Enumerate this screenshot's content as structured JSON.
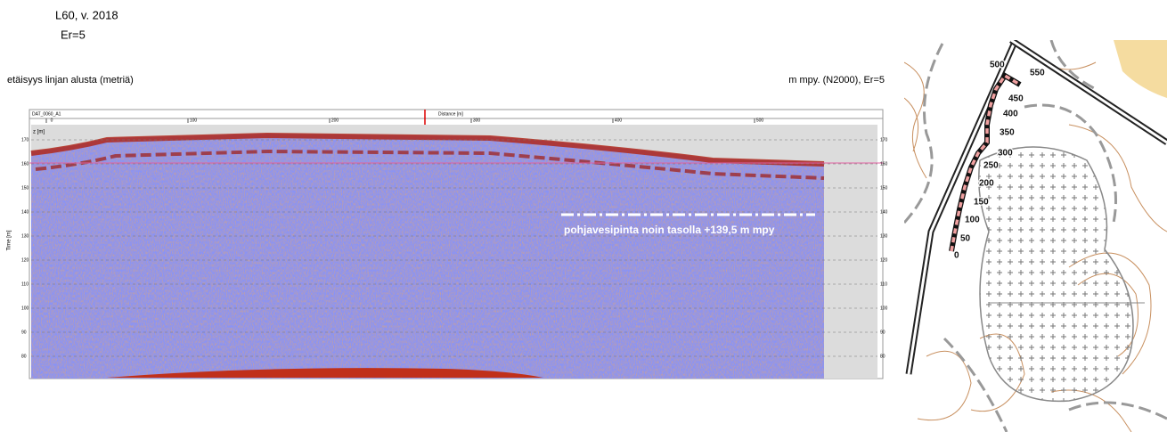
{
  "header": {
    "title": "L60, v. 2018",
    "subtitle": "Er=5"
  },
  "radargram": {
    "left_label": "etäisyys linjan alusta (metriä)",
    "right_label": "m mpy. (N2000), Er=5",
    "file_label": "DAT_0060_A1",
    "distance_label": "Distance [m]",
    "time_label": "Time [m]",
    "depth_label": "z [m]",
    "distance_ticks": [
      0,
      100,
      200,
      300,
      400,
      500
    ],
    "elevation_ticks": [
      170,
      160,
      150,
      140,
      130,
      120,
      110,
      100,
      90,
      80
    ],
    "annotation": "pohjavesipinta noin tasolla +139,5 m mpy"
  },
  "map": {
    "track_labels": [
      0,
      50,
      100,
      150,
      200,
      250,
      300,
      350,
      400,
      450,
      500,
      550
    ]
  }
}
